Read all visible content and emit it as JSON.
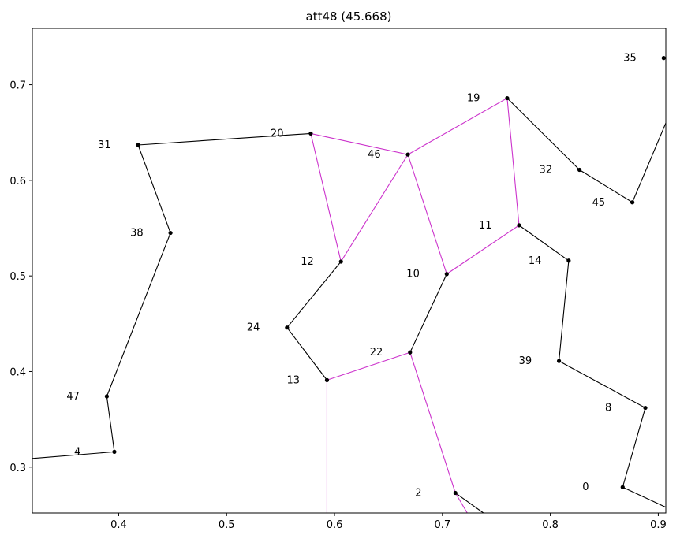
{
  "chart_data": {
    "type": "line",
    "title": "att48 (45.668)",
    "xlabel": "",
    "ylabel": "",
    "xlim": [
      0.32,
      0.907
    ],
    "ylim": [
      0.252,
      0.759
    ],
    "xticks": [
      0.4,
      0.5,
      0.6,
      0.7,
      0.8,
      0.9
    ],
    "yticks": [
      0.3,
      0.4,
      0.5,
      0.6,
      0.7
    ],
    "xtick_labels": [
      "0.4",
      "0.5",
      "0.6",
      "0.7",
      "0.8",
      "0.9"
    ],
    "ytick_labels": [
      "0.3",
      "0.4",
      "0.5",
      "0.6",
      "0.7"
    ],
    "grid": false,
    "colors": {
      "base_edge": "#000000",
      "highlight_edge": "#cc33cc",
      "node": "#000000"
    },
    "nodes": [
      {
        "id": "35",
        "label": "35",
        "x": 0.905,
        "y": 0.728
      },
      {
        "id": "19",
        "label": "19",
        "x": 0.76,
        "y": 0.686
      },
      {
        "id": "20",
        "label": "20",
        "x": 0.578,
        "y": 0.649
      },
      {
        "id": "46",
        "label": "46",
        "x": 0.668,
        "y": 0.627
      },
      {
        "id": "31",
        "label": "31",
        "x": 0.418,
        "y": 0.637
      },
      {
        "id": "32",
        "label": "32",
        "x": 0.827,
        "y": 0.611
      },
      {
        "id": "45",
        "label": "45",
        "x": 0.876,
        "y": 0.577
      },
      {
        "id": "11",
        "label": "11",
        "x": 0.771,
        "y": 0.553
      },
      {
        "id": "38",
        "label": "38",
        "x": 0.448,
        "y": 0.545
      },
      {
        "id": "14",
        "label": "14",
        "x": 0.817,
        "y": 0.516
      },
      {
        "id": "12",
        "label": "12",
        "x": 0.606,
        "y": 0.515
      },
      {
        "id": "10",
        "label": "10",
        "x": 0.704,
        "y": 0.502
      },
      {
        "id": "24",
        "label": "24",
        "x": 0.556,
        "y": 0.446
      },
      {
        "id": "22",
        "label": "22",
        "x": 0.67,
        "y": 0.42
      },
      {
        "id": "39",
        "label": "39",
        "x": 0.808,
        "y": 0.411
      },
      {
        "id": "13",
        "label": "13",
        "x": 0.593,
        "y": 0.391
      },
      {
        "id": "47",
        "label": "47",
        "x": 0.389,
        "y": 0.374
      },
      {
        "id": "8",
        "label": "8",
        "x": 0.888,
        "y": 0.362
      },
      {
        "id": "4",
        "label": "4",
        "x": 0.396,
        "y": 0.316
      },
      {
        "id": "0",
        "label": "0",
        "x": 0.867,
        "y": 0.279
      },
      {
        "id": "2",
        "label": "2",
        "x": 0.712,
        "y": 0.273
      }
    ],
    "base_edges": [
      [
        [
          0.907,
          0.66
        ],
        [
          0.876,
          0.577
        ]
      ],
      [
        [
          0.876,
          0.577
        ],
        [
          0.827,
          0.611
        ]
      ],
      [
        [
          0.827,
          0.611
        ],
        [
          0.76,
          0.686
        ]
      ],
      [
        [
          0.578,
          0.649
        ],
        [
          0.418,
          0.637
        ]
      ],
      [
        [
          0.418,
          0.637
        ],
        [
          0.448,
          0.545
        ]
      ],
      [
        [
          0.448,
          0.545
        ],
        [
          0.389,
          0.374
        ]
      ],
      [
        [
          0.389,
          0.374
        ],
        [
          0.396,
          0.316
        ]
      ],
      [
        [
          0.396,
          0.316
        ],
        [
          0.32,
          0.309
        ]
      ],
      [
        [
          0.606,
          0.515
        ],
        [
          0.556,
          0.446
        ]
      ],
      [
        [
          0.556,
          0.446
        ],
        [
          0.593,
          0.391
        ]
      ],
      [
        [
          0.704,
          0.502
        ],
        [
          0.67,
          0.42
        ]
      ],
      [
        [
          0.771,
          0.553
        ],
        [
          0.817,
          0.516
        ]
      ],
      [
        [
          0.817,
          0.516
        ],
        [
          0.808,
          0.411
        ]
      ],
      [
        [
          0.808,
          0.411
        ],
        [
          0.888,
          0.362
        ]
      ],
      [
        [
          0.888,
          0.362
        ],
        [
          0.867,
          0.279
        ]
      ],
      [
        [
          0.867,
          0.279
        ],
        [
          0.907,
          0.258
        ]
      ],
      [
        [
          0.712,
          0.273
        ],
        [
          0.738,
          0.252
        ]
      ]
    ],
    "highlight_edges": [
      [
        [
          0.578,
          0.649
        ],
        [
          0.668,
          0.627
        ]
      ],
      [
        [
          0.578,
          0.649
        ],
        [
          0.606,
          0.515
        ]
      ],
      [
        [
          0.668,
          0.627
        ],
        [
          0.606,
          0.515
        ]
      ],
      [
        [
          0.668,
          0.627
        ],
        [
          0.76,
          0.686
        ]
      ],
      [
        [
          0.668,
          0.627
        ],
        [
          0.704,
          0.502
        ]
      ],
      [
        [
          0.76,
          0.686
        ],
        [
          0.771,
          0.553
        ]
      ],
      [
        [
          0.771,
          0.553
        ],
        [
          0.704,
          0.502
        ]
      ],
      [
        [
          0.67,
          0.42
        ],
        [
          0.593,
          0.391
        ]
      ],
      [
        [
          0.593,
          0.391
        ],
        [
          0.593,
          0.252
        ]
      ],
      [
        [
          0.67,
          0.42
        ],
        [
          0.712,
          0.273
        ]
      ],
      [
        [
          0.712,
          0.273
        ],
        [
          0.723,
          0.252
        ]
      ]
    ]
  }
}
